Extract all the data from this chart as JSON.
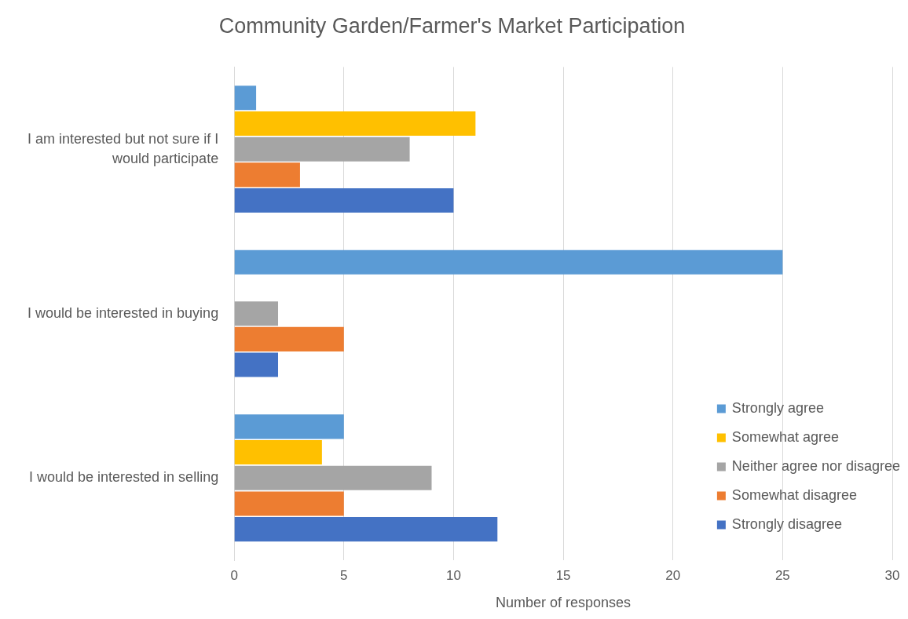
{
  "chart_data": {
    "type": "bar",
    "orientation": "horizontal",
    "title": "Community Garden/Farmer's Market Participation",
    "xlabel": "Number of responses",
    "categories": [
      "I am interested but not sure if I would participate",
      "I would be interested in buying",
      "I would be interested in selling"
    ],
    "series": [
      {
        "name": "Strongly agree",
        "color": "#5b9bd5",
        "values": [
          1,
          25,
          5
        ]
      },
      {
        "name": "Somewhat agree",
        "color": "#ffc000",
        "values": [
          11,
          0,
          4
        ]
      },
      {
        "name": "Neither agree nor disagree",
        "color": "#a5a5a5",
        "values": [
          8,
          2,
          9
        ]
      },
      {
        "name": "Somewhat disagree",
        "color": "#ed7d31",
        "values": [
          3,
          5,
          5
        ]
      },
      {
        "name": "Strongly disagree",
        "color": "#4472c4",
        "values": [
          10,
          2,
          12
        ]
      }
    ],
    "xlim": [
      0,
      30
    ],
    "xticks": [
      0,
      5,
      10,
      15,
      20,
      25,
      30
    ],
    "grid": "x",
    "legend": "bottom right"
  }
}
